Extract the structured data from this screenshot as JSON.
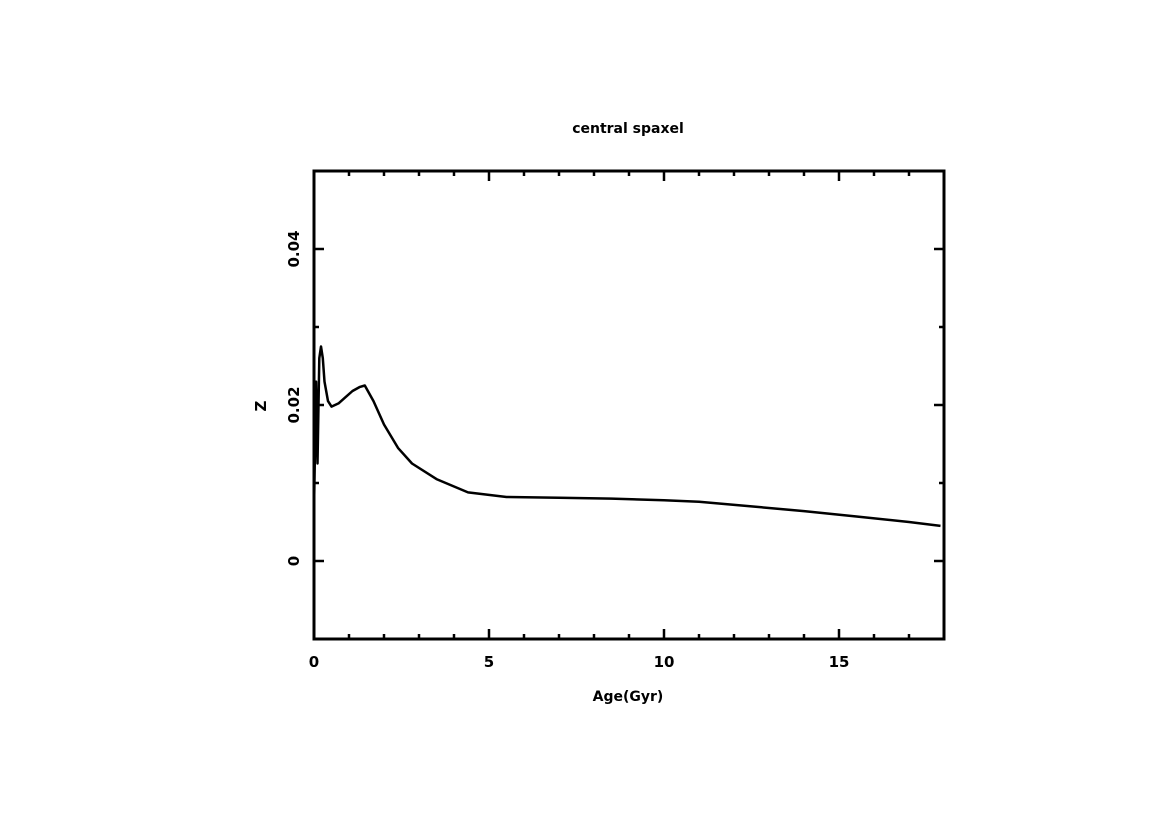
{
  "chart_data": {
    "type": "line",
    "title": "central spaxel",
    "xlabel": "Age(Gyr)",
    "ylabel": "Z",
    "xlim": [
      0,
      18
    ],
    "ylim": [
      -0.01,
      0.05
    ],
    "xticks": [
      0,
      5,
      10,
      15
    ],
    "xtick_labels": [
      "0",
      "5",
      "10",
      "15"
    ],
    "yticks": [
      0,
      0.02,
      0.04
    ],
    "ytick_labels": [
      "0",
      "0.02",
      "0.04"
    ],
    "grid": false,
    "line_color": "#000000",
    "series": [
      {
        "x": [
          0.0,
          0.06,
          0.1,
          0.15,
          0.2,
          0.25,
          0.3,
          0.4,
          0.5,
          0.7,
          0.9,
          1.1,
          1.3,
          1.45,
          1.7,
          2.0,
          2.4,
          2.8,
          3.5,
          4.4,
          5.5,
          7.0,
          8.5,
          10.0,
          11.0,
          12.5,
          14.0,
          15.5,
          17.0,
          17.9
        ],
        "y": [
          0.0065,
          0.023,
          0.0125,
          0.026,
          0.0275,
          0.026,
          0.023,
          0.0205,
          0.0198,
          0.0202,
          0.021,
          0.0218,
          0.0223,
          0.0225,
          0.0205,
          0.0175,
          0.0145,
          0.0125,
          0.0105,
          0.0088,
          0.0082,
          0.0081,
          0.008,
          0.0078,
          0.0076,
          0.007,
          0.0064,
          0.0057,
          0.005,
          0.0045
        ]
      }
    ]
  }
}
